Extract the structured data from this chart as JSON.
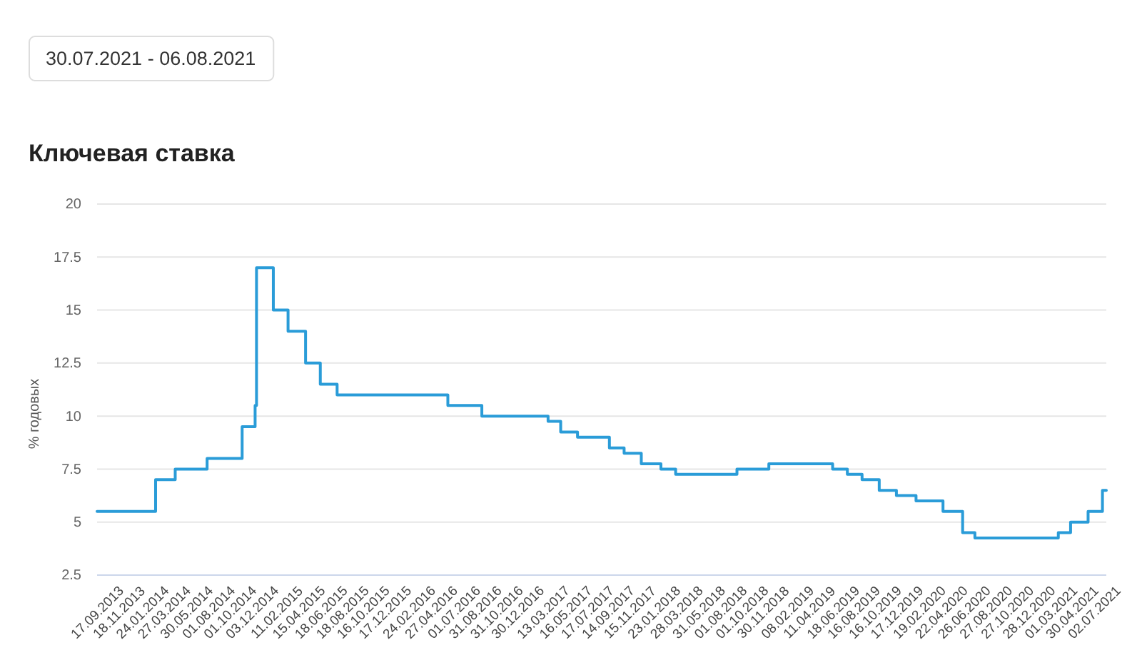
{
  "chart_data": {
    "type": "step",
    "title": "Ключевая ставка",
    "ylabel": "% годовых",
    "annotations": [
      "30.07.2021 - 06.08.2021"
    ],
    "color": "#2a9cd8",
    "x": [
      "2013-09-17",
      "2014-03-03",
      "2014-04-28",
      "2014-07-28",
      "2014-11-05",
      "2014-12-12",
      "2014-12-16",
      "2015-02-02",
      "2015-03-16",
      "2015-05-05",
      "2015-06-16",
      "2015-08-03",
      "2016-06-14",
      "2016-09-19",
      "2017-03-27",
      "2017-05-02",
      "2017-06-19",
      "2017-09-18",
      "2017-10-30",
      "2017-12-18",
      "2018-02-12",
      "2018-03-26",
      "2018-09-17",
      "2018-12-17",
      "2019-06-17",
      "2019-07-29",
      "2019-09-09",
      "2019-10-28",
      "2019-12-16",
      "2020-02-10",
      "2020-04-27",
      "2020-06-22",
      "2020-07-27",
      "2021-03-22",
      "2021-04-26",
      "2021-06-15",
      "2021-07-26",
      "2021-08-06"
    ],
    "values": [
      5.5,
      7,
      7.5,
      8,
      9.5,
      10.5,
      17,
      15,
      14,
      12.5,
      11.5,
      11,
      10.5,
      10,
      9.75,
      9.25,
      9,
      8.5,
      8.25,
      7.75,
      7.5,
      7.25,
      7.5,
      7.75,
      7.5,
      7.25,
      7,
      6.5,
      6.25,
      6,
      5.5,
      4.5,
      4.25,
      4.5,
      5,
      5.5,
      6.5,
      6.5
    ],
    "xlim": [
      "2013-09-17",
      "2021-08-06"
    ],
    "ylim": [
      2.5,
      20
    ],
    "yticks": [
      2.5,
      5,
      7.5,
      10,
      12.5,
      15,
      17.5,
      20
    ],
    "xticks": [
      {
        "value": "2013-09-17",
        "label": "17.09.2013"
      },
      {
        "value": "2013-11-18",
        "label": "18.11.2013"
      },
      {
        "value": "2014-01-24",
        "label": "24.01.2014"
      },
      {
        "value": "2014-03-27",
        "label": "27.03.2014"
      },
      {
        "value": "2014-05-30",
        "label": "30.05.2014"
      },
      {
        "value": "2014-08-01",
        "label": "01.08.2014"
      },
      {
        "value": "2014-10-01",
        "label": "01.10.2014"
      },
      {
        "value": "2014-12-03",
        "label": "03.12.2014"
      },
      {
        "value": "2015-02-11",
        "label": "11.02.2015"
      },
      {
        "value": "2015-04-15",
        "label": "15.04.2015"
      },
      {
        "value": "2015-06-18",
        "label": "18.06.2015"
      },
      {
        "value": "2015-08-18",
        "label": "18.08.2015"
      },
      {
        "value": "2015-10-16",
        "label": "16.10.2015"
      },
      {
        "value": "2015-12-17",
        "label": "17.12.2015"
      },
      {
        "value": "2016-02-24",
        "label": "24.02.2016"
      },
      {
        "value": "2016-04-27",
        "label": "27.04.2016"
      },
      {
        "value": "2016-07-01",
        "label": "01.07.2016"
      },
      {
        "value": "2016-08-31",
        "label": "31.08.2016"
      },
      {
        "value": "2016-10-31",
        "label": "31.10.2016"
      },
      {
        "value": "2016-12-30",
        "label": "30.12.2016"
      },
      {
        "value": "2017-03-13",
        "label": "13.03.2017"
      },
      {
        "value": "2017-05-16",
        "label": "16.05.2017"
      },
      {
        "value": "2017-07-17",
        "label": "17.07.2017"
      },
      {
        "value": "2017-09-14",
        "label": "14.09.2017"
      },
      {
        "value": "2017-11-15",
        "label": "15.11.2017"
      },
      {
        "value": "2018-01-23",
        "label": "23.01.2018"
      },
      {
        "value": "2018-03-28",
        "label": "28.03.2018"
      },
      {
        "value": "2018-05-31",
        "label": "31.05.2018"
      },
      {
        "value": "2018-08-01",
        "label": "01.08.2018"
      },
      {
        "value": "2018-10-01",
        "label": "01.10.2018"
      },
      {
        "value": "2018-11-30",
        "label": "30.11.2018"
      },
      {
        "value": "2019-02-08",
        "label": "08.02.2019"
      },
      {
        "value": "2019-04-11",
        "label": "11.04.2019"
      },
      {
        "value": "2019-06-18",
        "label": "18.06.2019"
      },
      {
        "value": "2019-08-16",
        "label": "16.08.2019"
      },
      {
        "value": "2019-10-16",
        "label": "16.10.2019"
      },
      {
        "value": "2019-12-17",
        "label": "17.12.2019"
      },
      {
        "value": "2020-02-19",
        "label": "19.02.2020"
      },
      {
        "value": "2020-04-22",
        "label": "22.04.2020"
      },
      {
        "value": "2020-06-26",
        "label": "26.06.2020"
      },
      {
        "value": "2020-08-27",
        "label": "27.08.2020"
      },
      {
        "value": "2020-10-27",
        "label": "27.10.2020"
      },
      {
        "value": "2020-12-28",
        "label": "28.12.2020"
      },
      {
        "value": "2021-03-01",
        "label": "01.03.2021"
      },
      {
        "value": "2021-04-30",
        "label": "30.04.2021"
      },
      {
        "value": "2021-07-02",
        "label": "02.07.2021"
      }
    ],
    "grid": "y"
  }
}
